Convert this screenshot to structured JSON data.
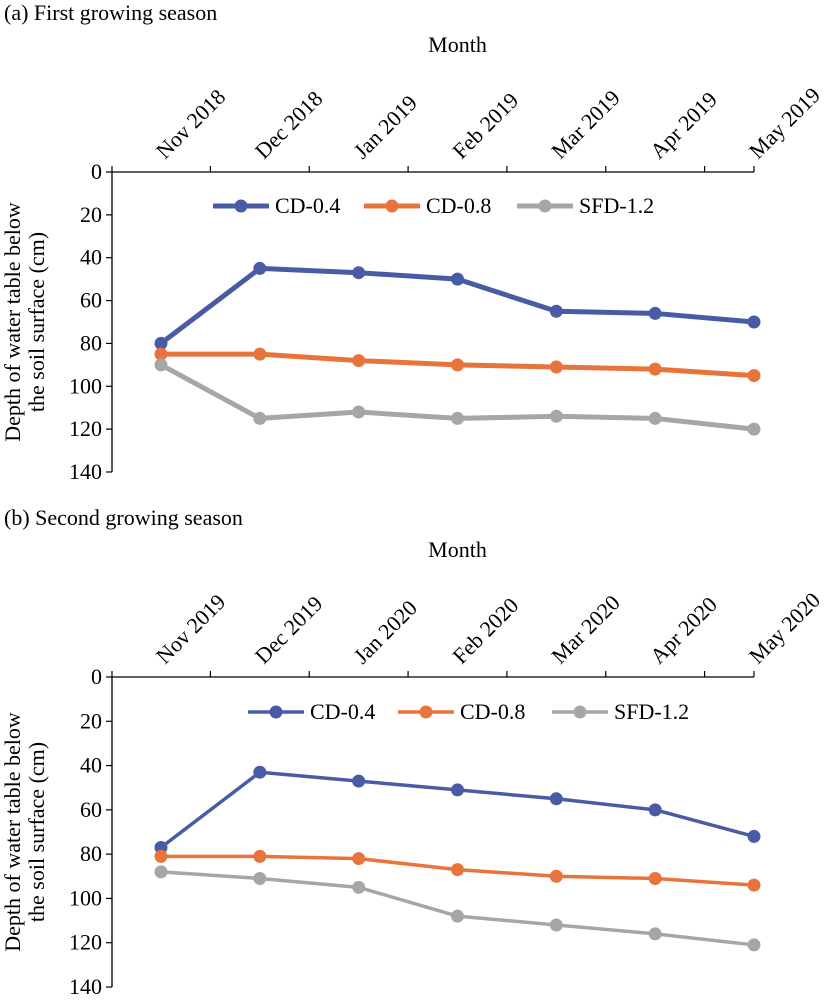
{
  "chart_data": [
    {
      "type": "line",
      "title": "(a) First growing season",
      "xlabel": "Month",
      "ylabel_lines": [
        "Depth of water table below",
        "the soil surface (cm)"
      ],
      "categories": [
        "Nov 2018",
        "Dec 2018",
        "Jan 2019",
        "Feb 2019",
        "Mar 2019",
        "Apr 2019",
        "May 2019"
      ],
      "y_ticks": [
        0,
        20,
        40,
        60,
        80,
        100,
        120,
        140
      ],
      "ylim": [
        0,
        140
      ],
      "y_inverted": true,
      "x_axis_position": "top",
      "grid": false,
      "legend_position": "top-center",
      "series": [
        {
          "name": "CD-0.4",
          "color": "#4A5BA6",
          "values": [
            80,
            45,
            47,
            50,
            65,
            66,
            70
          ]
        },
        {
          "name": "CD-0.8",
          "color": "#E8743B",
          "values": [
            85,
            85,
            88,
            90,
            91,
            92,
            95
          ]
        },
        {
          "name": "SFD-1.2",
          "color": "#A6A6A6",
          "values": [
            90,
            115,
            112,
            115,
            114,
            115,
            120
          ]
        }
      ]
    },
    {
      "type": "line",
      "title": "(b) Second growing season",
      "xlabel": "Month",
      "ylabel_lines": [
        "Depth of water table below",
        "the soil surface (cm)"
      ],
      "categories": [
        "Nov 2019",
        "Dec 2019",
        "Jan 2020",
        "Feb 2020",
        "Mar 2020",
        "Apr 2020",
        "May 2020"
      ],
      "y_ticks": [
        0,
        20,
        40,
        60,
        80,
        100,
        120,
        140
      ],
      "ylim": [
        0,
        140
      ],
      "y_inverted": true,
      "x_axis_position": "top",
      "grid": false,
      "legend_position": "top-center",
      "series": [
        {
          "name": "CD-0.4",
          "color": "#4A5BA6",
          "values": [
            77,
            43,
            47,
            51,
            55,
            60,
            72
          ]
        },
        {
          "name": "CD-0.8",
          "color": "#E8743B",
          "values": [
            81,
            81,
            82,
            87,
            90,
            91,
            94
          ]
        },
        {
          "name": "SFD-1.2",
          "color": "#A6A6A6",
          "values": [
            88,
            91,
            95,
            108,
            112,
            116,
            121
          ]
        }
      ]
    }
  ]
}
